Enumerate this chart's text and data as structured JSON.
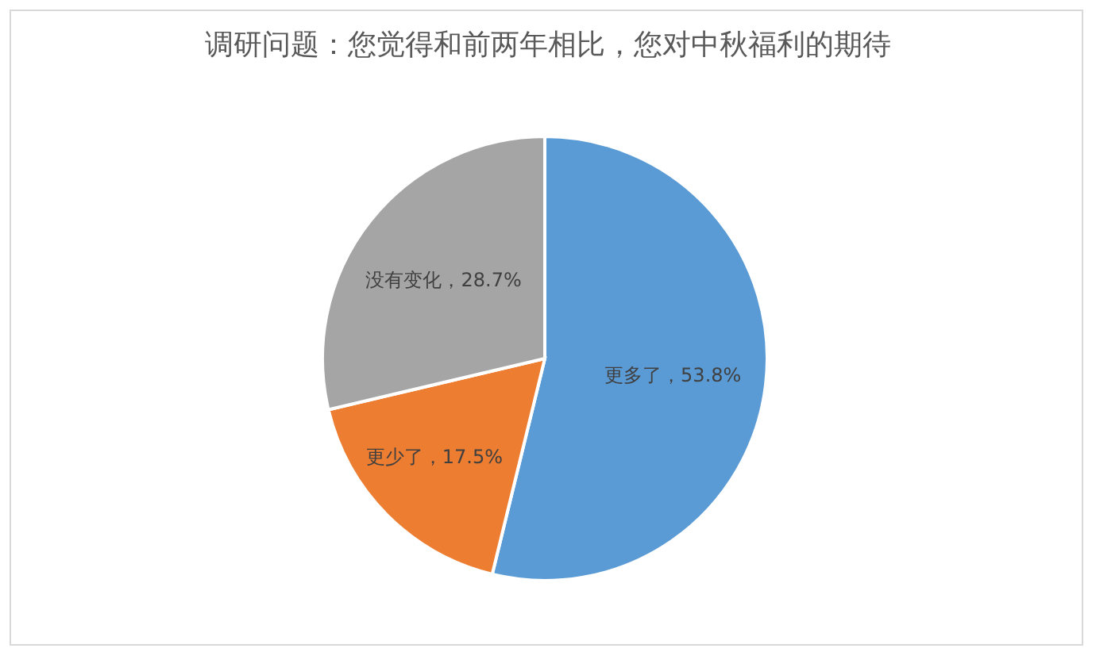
{
  "chart_data": {
    "type": "pie",
    "title": "调研问题：您觉得和前两年相比，您对中秋福利的期待",
    "categories": [
      "更多了",
      "更少了",
      "没有变化"
    ],
    "values": [
      53.8,
      17.5,
      28.7
    ],
    "colors": [
      "#5b9bd5",
      "#ed7d31",
      "#a5a5a5"
    ],
    "value_labels": [
      "53.8%",
      "17.5%",
      "28.7%"
    ]
  }
}
